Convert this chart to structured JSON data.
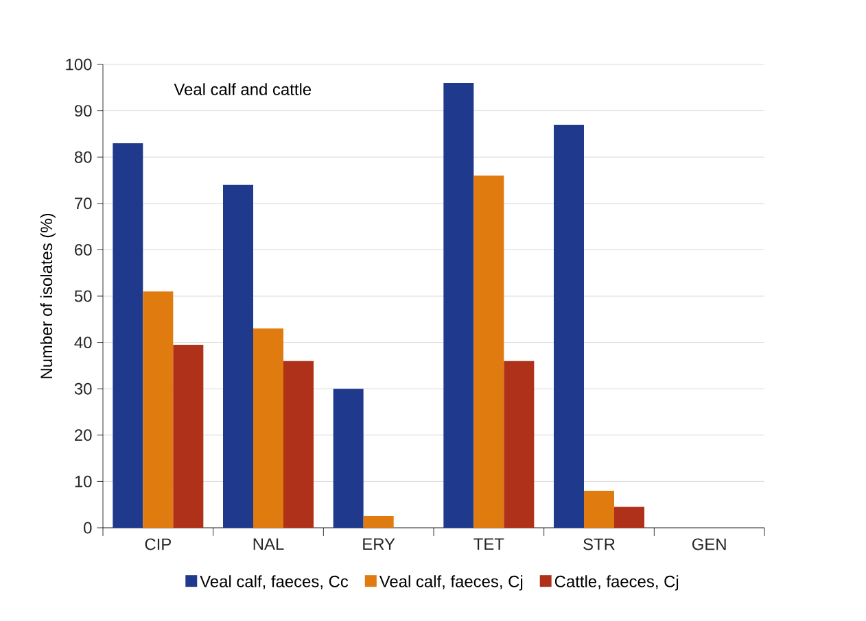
{
  "chart_data": {
    "type": "bar",
    "ylabel": "Number of isolates (%)",
    "annotations": [
      "Veal calf and cattle"
    ],
    "categories": [
      "CIP",
      "NAL",
      "ERY",
      "TET",
      "STR",
      "GEN"
    ],
    "series": [
      {
        "name": "Veal calf, faeces, Cc",
        "color": "#1f3a8c",
        "values": [
          83,
          74,
          30,
          96,
          87,
          0
        ]
      },
      {
        "name": "Veal calf, faeces, Cj",
        "color": "#e07b10",
        "values": [
          51,
          43,
          2.5,
          76,
          8,
          0
        ]
      },
      {
        "name": "Cattle, faeces, Cj",
        "color": "#b0311a",
        "values": [
          39.5,
          36,
          0,
          36,
          4.5,
          0
        ]
      }
    ],
    "ylim": [
      0,
      100
    ],
    "yticks": [
      0,
      10,
      20,
      30,
      40,
      50,
      60,
      70,
      80,
      90,
      100
    ],
    "grid": "y",
    "legend": "bottom"
  }
}
